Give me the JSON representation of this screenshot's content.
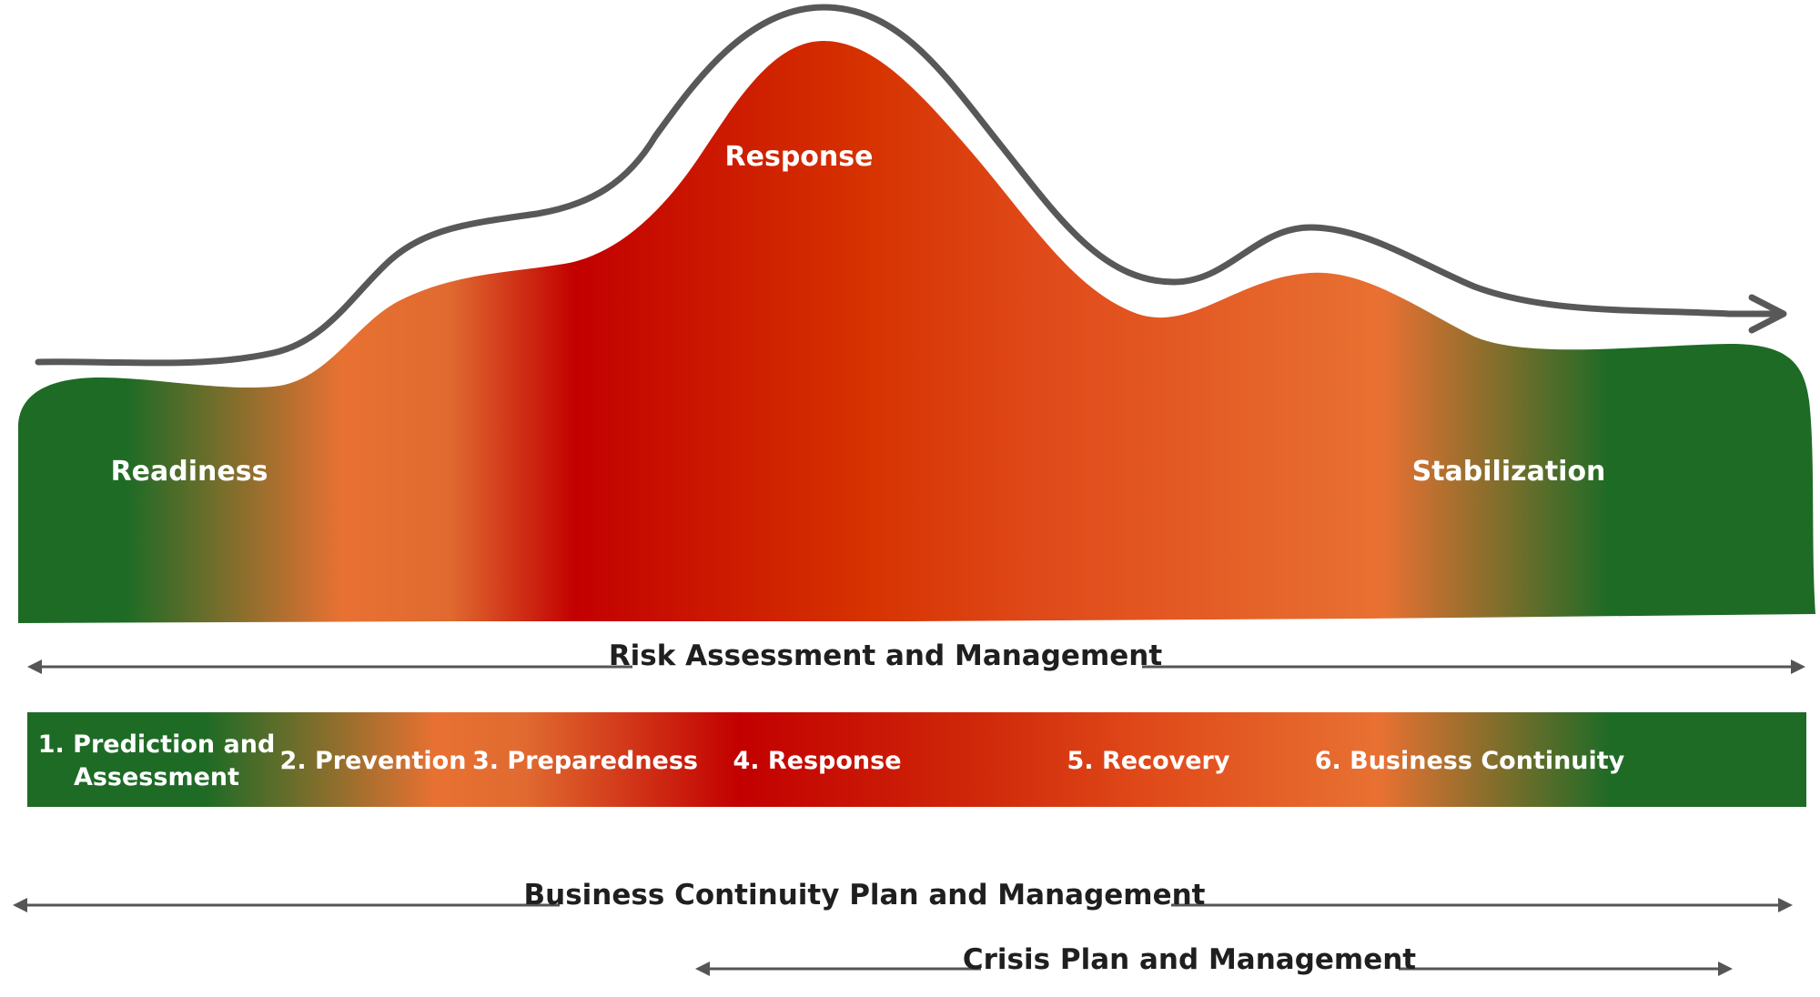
{
  "mountain": {
    "left_label": "Readiness",
    "peak_label": "Response",
    "right_label": "Stabilization"
  },
  "risk_arrow": {
    "label": "Risk Assessment and Management"
  },
  "phases": {
    "p1_line1": "1. Prediction and",
    "p1_line2": "Assessment",
    "p2": "2. Prevention",
    "p3": "3. Preparedness",
    "p4": "4. Response",
    "p5": "5. Recovery",
    "p6": "6. Business Continuity"
  },
  "bcp_arrow": {
    "label": "Business Continuity Plan and Management"
  },
  "crisis_arrow": {
    "label": "Crisis Plan and Management"
  },
  "colors": {
    "green": "#1e6b26",
    "orange": "#e87132",
    "red": "#c20000",
    "red_orange": "#d63200",
    "curve": "#585858",
    "arrow_line": "#555555",
    "text_dark": "#1f1f1f"
  }
}
